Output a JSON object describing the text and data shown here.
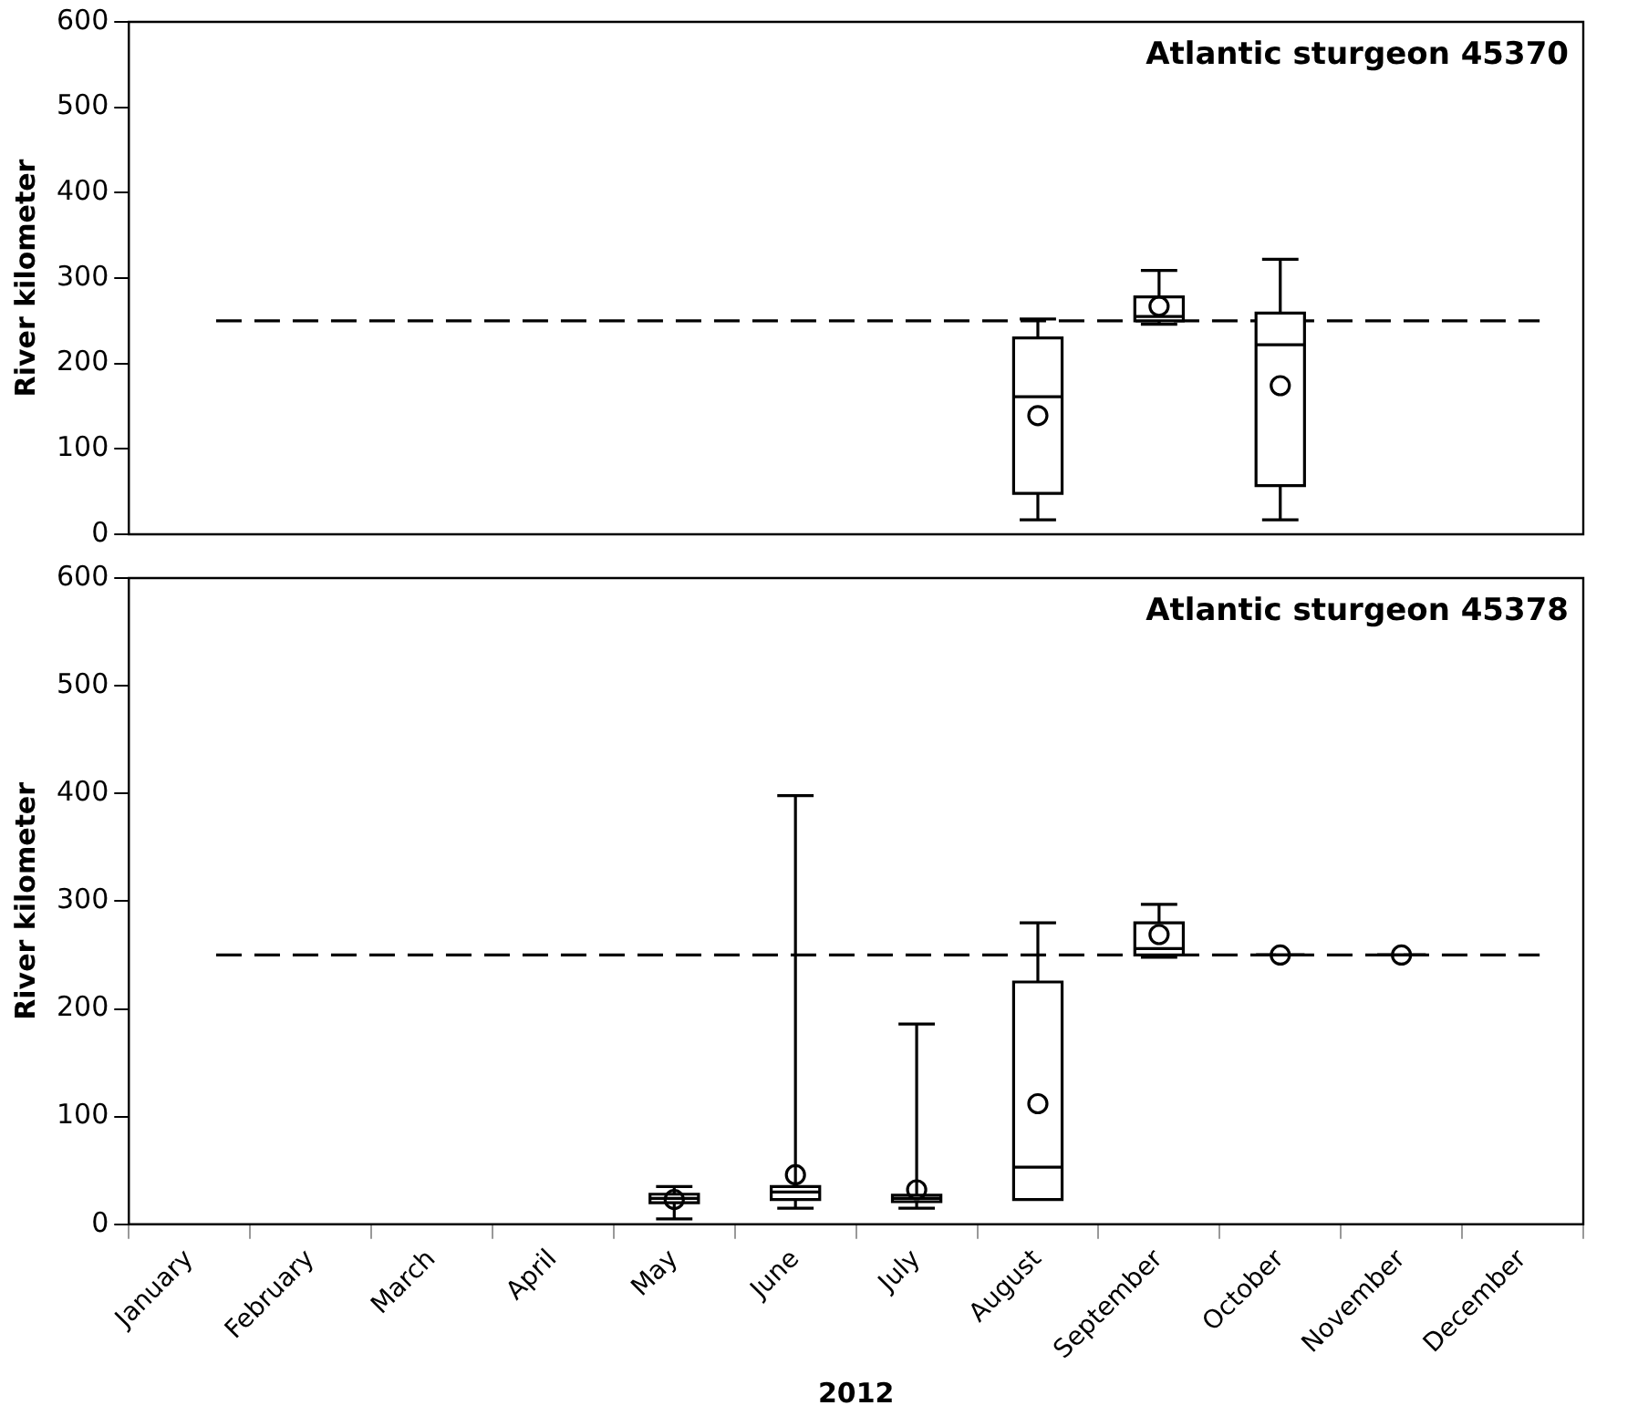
{
  "chart_data": [
    {
      "type": "box",
      "annotations": [
        "Atlantic sturgeon 45370"
      ],
      "ylabel": "River kilometer",
      "categories": [
        null,
        null,
        null,
        null,
        null,
        null,
        null,
        null,
        null,
        null,
        null,
        null
      ],
      "ylim": [
        0,
        600
      ],
      "yticks": [
        0,
        100,
        200,
        300,
        400,
        500,
        600
      ],
      "tick_labels": "y",
      "marker": "circle",
      "boxes": [
        null,
        null,
        null,
        null,
        null,
        null,
        null,
        {
          "low": 17,
          "q1": 48,
          "median": 161,
          "q3": 230,
          "high": 252,
          "mean": 139
        },
        {
          "low": 246,
          "q1": 250,
          "median": 255,
          "q3": 278,
          "high": 309,
          "mean": 267
        },
        {
          "low": 17,
          "q1": 57,
          "median": 222,
          "q3": 259,
          "high": 322,
          "mean": 174
        },
        null,
        null
      ],
      "ref_lines": [
        {
          "axis": "y",
          "value": 250,
          "color": "#000000",
          "line_style": "dashed"
        }
      ]
    },
    {
      "type": "box",
      "annotations": [
        "Atlantic sturgeon 45378"
      ],
      "ylabel": "River kilometer",
      "xlabel": "2012",
      "categories": [
        "January",
        "February",
        "March",
        "April",
        "May",
        "June",
        "July",
        "August",
        "September",
        "October",
        "November",
        "December"
      ],
      "ylim": [
        0,
        600
      ],
      "yticks": [
        0,
        100,
        200,
        300,
        400,
        500,
        600
      ],
      "marker": "circle",
      "boxes": [
        null,
        null,
        null,
        null,
        {
          "low": 5,
          "q1": 20,
          "median": 24,
          "q3": 28,
          "high": 35,
          "mean": 23
        },
        {
          "low": 15,
          "q1": 23,
          "median": 30,
          "q3": 35,
          "high": 398,
          "mean": 46
        },
        {
          "low": 15,
          "q1": 21,
          "median": 24,
          "q3": 27,
          "high": 186,
          "mean": 32
        },
        {
          "low": 23,
          "q1": 23,
          "median": 53,
          "q3": 225,
          "high": 280,
          "mean": 112
        },
        {
          "low": 248,
          "q1": 250,
          "median": 256,
          "q3": 280,
          "high": 297,
          "mean": 269
        },
        {
          "low": 250,
          "q1": 250,
          "median": 250,
          "q3": 250,
          "high": 250,
          "mean": 250
        },
        {
          "low": 250,
          "q1": 250,
          "median": 250,
          "q3": 250,
          "high": 250,
          "mean": 250
        },
        null
      ],
      "ref_lines": [
        {
          "axis": "y",
          "value": 250,
          "color": "#000000",
          "line_style": "dashed"
        }
      ]
    }
  ]
}
